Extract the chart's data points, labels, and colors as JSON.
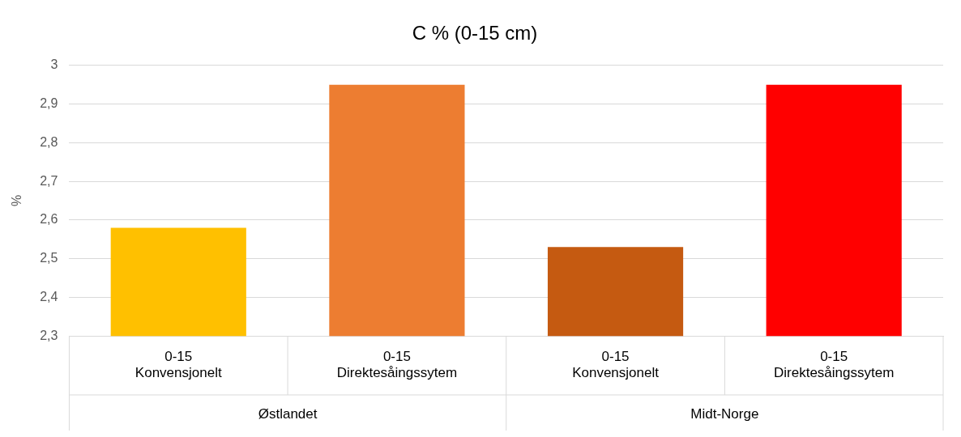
{
  "chart_data": {
    "type": "bar",
    "title": "C % (0-15 cm)",
    "ylabel": "%",
    "categories": [
      "0-15\nKonvensjonelt",
      "0-15\nDirektesåingssytem",
      "0-15\nKonvensjonelt",
      "0-15\nDirektesåingssytem"
    ],
    "values": [
      2.58,
      2.95,
      2.53,
      2.95
    ],
    "colors": [
      "#ffc000",
      "#ed7d31",
      "#c55a11",
      "#ff0000"
    ],
    "ylim": [
      2.3,
      3
    ],
    "yticks": [
      {
        "value": 2.3,
        "label": "2,3"
      },
      {
        "value": 2.4,
        "label": "2,4"
      },
      {
        "value": 2.5,
        "label": "2,5"
      },
      {
        "value": 2.6,
        "label": "2,6"
      },
      {
        "value": 2.7,
        "label": "2,7"
      },
      {
        "value": 2.8,
        "label": "2,8"
      },
      {
        "value": 2.9,
        "label": "2,9"
      },
      3
    ],
    "grid": "y",
    "legend": false,
    "annotations": [
      "Østlandet",
      "Midt-Norge"
    ]
  }
}
